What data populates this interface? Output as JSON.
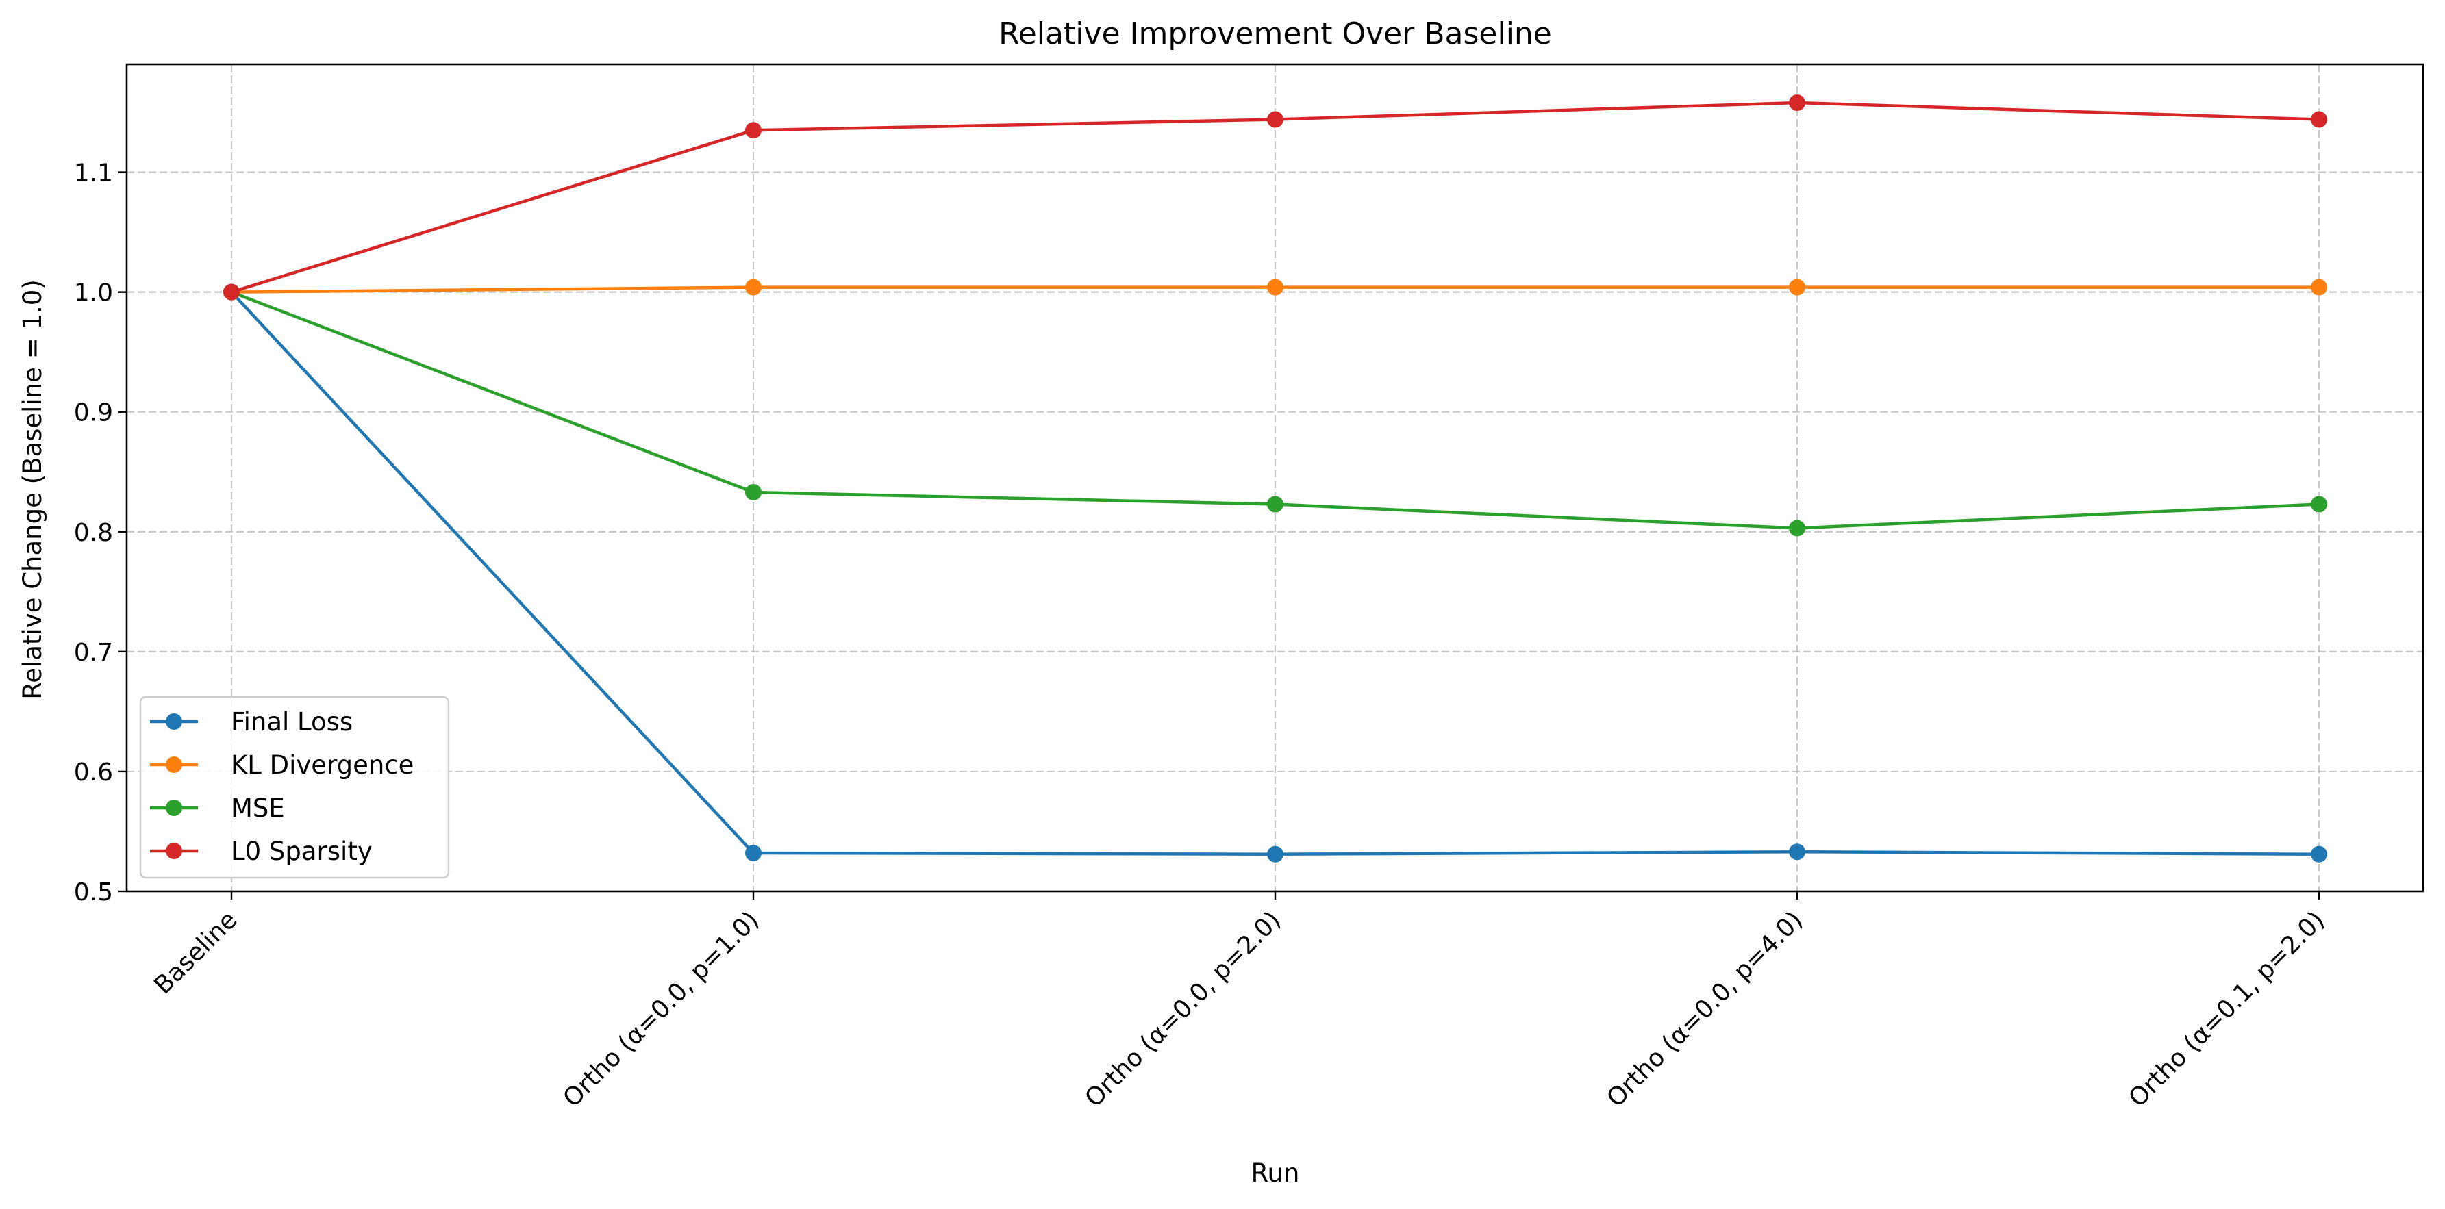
{
  "chart_data": {
    "type": "line",
    "title": "Relative Improvement Over Baseline",
    "xlabel": "Run",
    "ylabel": "Relative Change (Baseline = 1.0)",
    "categories": [
      "Baseline",
      "Ortho (α=0.0, p=1.0)",
      "Ortho (α=0.0, p=2.0)",
      "Ortho (α=0.0, p=4.0)",
      "Ortho (α=0.1, p=2.0)"
    ],
    "ylim": [
      0.5,
      1.19
    ],
    "yticks": [
      "0.5",
      "0.6",
      "0.7",
      "0.8",
      "0.9",
      "1.0",
      "1.1"
    ],
    "grid": true,
    "legend_position": "lower-left",
    "series": [
      {
        "name": "Final Loss",
        "color": "#1f77b4",
        "values": [
          1.0,
          0.532,
          0.531,
          0.533,
          0.531
        ]
      },
      {
        "name": "KL Divergence",
        "color": "#ff7f0e",
        "values": [
          1.0,
          1.004,
          1.004,
          1.004,
          1.004
        ]
      },
      {
        "name": "MSE",
        "color": "#2ca02c",
        "values": [
          1.0,
          0.833,
          0.823,
          0.803,
          0.823
        ]
      },
      {
        "name": "L0 Sparsity",
        "color": "#d62728",
        "values": [
          1.0,
          1.135,
          1.144,
          1.158,
          1.144
        ]
      }
    ]
  }
}
